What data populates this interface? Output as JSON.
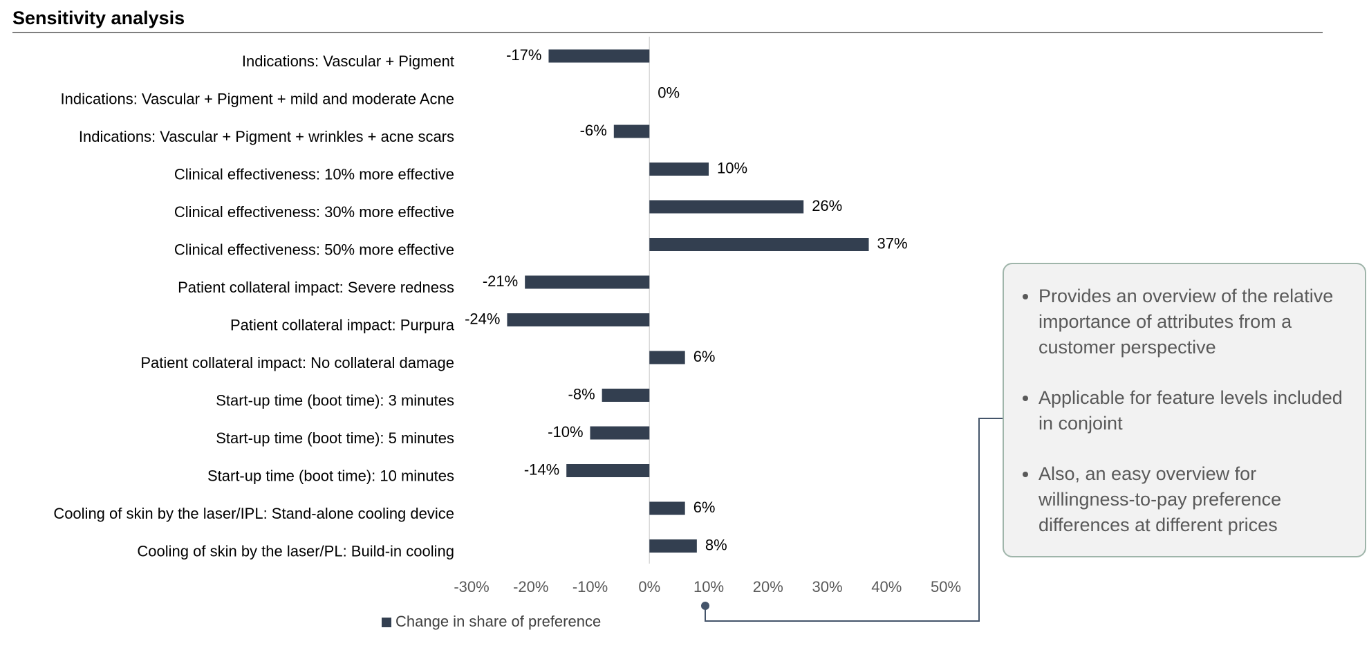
{
  "chart_data": {
    "type": "bar",
    "orientation": "horizontal",
    "title": "Sensitivity analysis",
    "categories": [
      "Indications: Vascular + Pigment",
      "Indications: Vascular + Pigment + mild and moderate Acne",
      "Indications: Vascular + Pigment + wrinkles + acne scars",
      "Clinical effectiveness: 10% more effective",
      "Clinical effectiveness: 30% more effective",
      "Clinical effectiveness: 50% more effective",
      "Patient collateral impact: Severe redness",
      "Patient collateral impact: Purpura",
      "Patient collateral impact: No collateral damage",
      "Start-up time (boot time): 3 minutes",
      "Start-up time (boot time): 5 minutes",
      "Start-up time (boot time): 10 minutes",
      "Cooling of skin by the laser/IPL: Stand-alone cooling device",
      "Cooling of skin by the laser/PL: Build-in cooling"
    ],
    "series": [
      {
        "name": "Change in share of preference",
        "color": "#333f50",
        "values": [
          -17,
          0,
          -6,
          10,
          26,
          37,
          -21,
          -24,
          6,
          -8,
          -10,
          -14,
          6,
          8
        ],
        "value_labels": [
          "-17%",
          "0%",
          "-6%",
          "10%",
          "26%",
          "37%",
          "-21%",
          "-24%",
          "6%",
          "-8%",
          "-10%",
          "-14%",
          "6%",
          "8%"
        ]
      }
    ],
    "xlim": [
      -30,
      50
    ],
    "xticks": [
      {
        "value": -30,
        "label": "-30%"
      },
      {
        "value": -20,
        "label": "-20%"
      },
      {
        "value": -10,
        "label": "-10%"
      },
      {
        "value": 0,
        "label": "0%"
      },
      {
        "value": 10,
        "label": "10%"
      },
      {
        "value": 20,
        "label": "20%"
      },
      {
        "value": 30,
        "label": "30%"
      },
      {
        "value": 40,
        "label": "40%"
      },
      {
        "value": 50,
        "label": "50%"
      }
    ],
    "legend": "bottom"
  },
  "callout": {
    "bullets": [
      "Provides an overview of the relative importance of attributes from a customer perspective",
      "Applicable for feature levels included in conjoint",
      "Also, an easy overview for willingness-to-pay preference differences at different prices"
    ]
  }
}
